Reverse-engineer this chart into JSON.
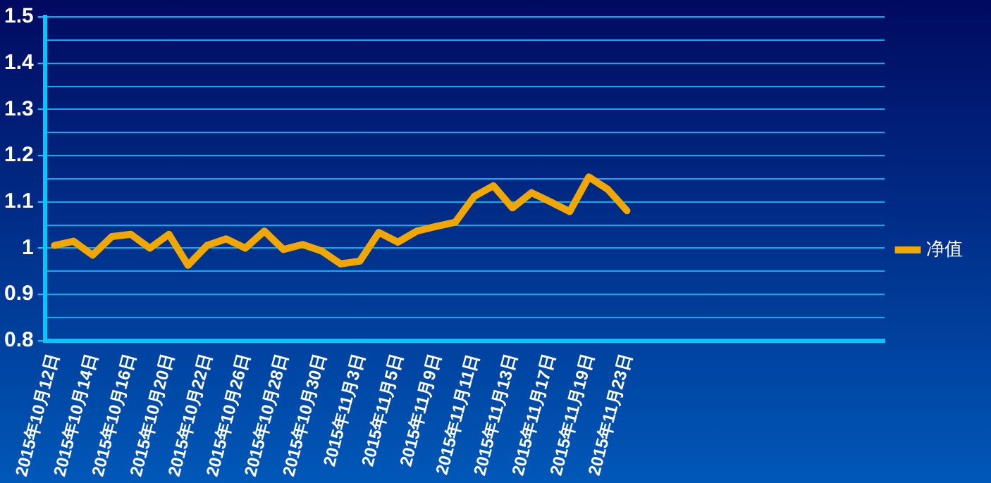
{
  "chart_data": {
    "type": "line",
    "categories": [
      "2015年10月12日",
      null,
      "2015年10月14日",
      null,
      "2015年10月16日",
      null,
      "2015年10月20日",
      null,
      "2015年10月22日",
      null,
      "2015年10月26日",
      null,
      "2015年10月28日",
      null,
      "2015年10月30日",
      null,
      "2015年11月3日",
      null,
      "2015年11月5日",
      null,
      "2015年11月9日",
      null,
      "2015年11月11日",
      null,
      "2015年11月13日",
      null,
      "2015年11月17日",
      null,
      "2015年11月19日",
      null,
      "2015年11月23日",
      null,
      null,
      null,
      null,
      null,
      null,
      null,
      null,
      null,
      null,
      null,
      null,
      null
    ],
    "series": [
      {
        "name": "净值",
        "color": "#f0a800",
        "values": [
          1.006,
          1.015,
          0.985,
          1.025,
          1.03,
          1.0,
          1.03,
          0.963,
          1.006,
          1.02,
          1.0,
          1.037,
          0.997,
          1.008,
          0.994,
          0.966,
          0.972,
          1.034,
          1.013,
          1.037,
          1.047,
          1.056,
          1.112,
          1.135,
          1.087,
          1.12,
          1.1,
          1.079,
          1.154,
          1.127,
          1.081,
          null,
          null,
          null,
          null,
          null,
          null,
          null,
          null,
          null,
          null,
          null,
          null,
          null
        ]
      }
    ],
    "ylim": [
      0.8,
      1.5
    ],
    "yticks": [
      0.8,
      {
        "value": 0.85,
        "label": null
      },
      0.9,
      {
        "value": 0.95,
        "label": null
      },
      1,
      {
        "value": 1.05,
        "label": null
      },
      1.1,
      {
        "value": 1.15,
        "label": null
      },
      1.2,
      {
        "value": 1.25,
        "label": null
      },
      1.3,
      {
        "value": 1.35,
        "label": null
      },
      1.4,
      {
        "value": 1.45,
        "label": null
      },
      1.5
    ],
    "grid": "y",
    "legend": "right",
    "marker": "none",
    "line_style": "solid"
  }
}
